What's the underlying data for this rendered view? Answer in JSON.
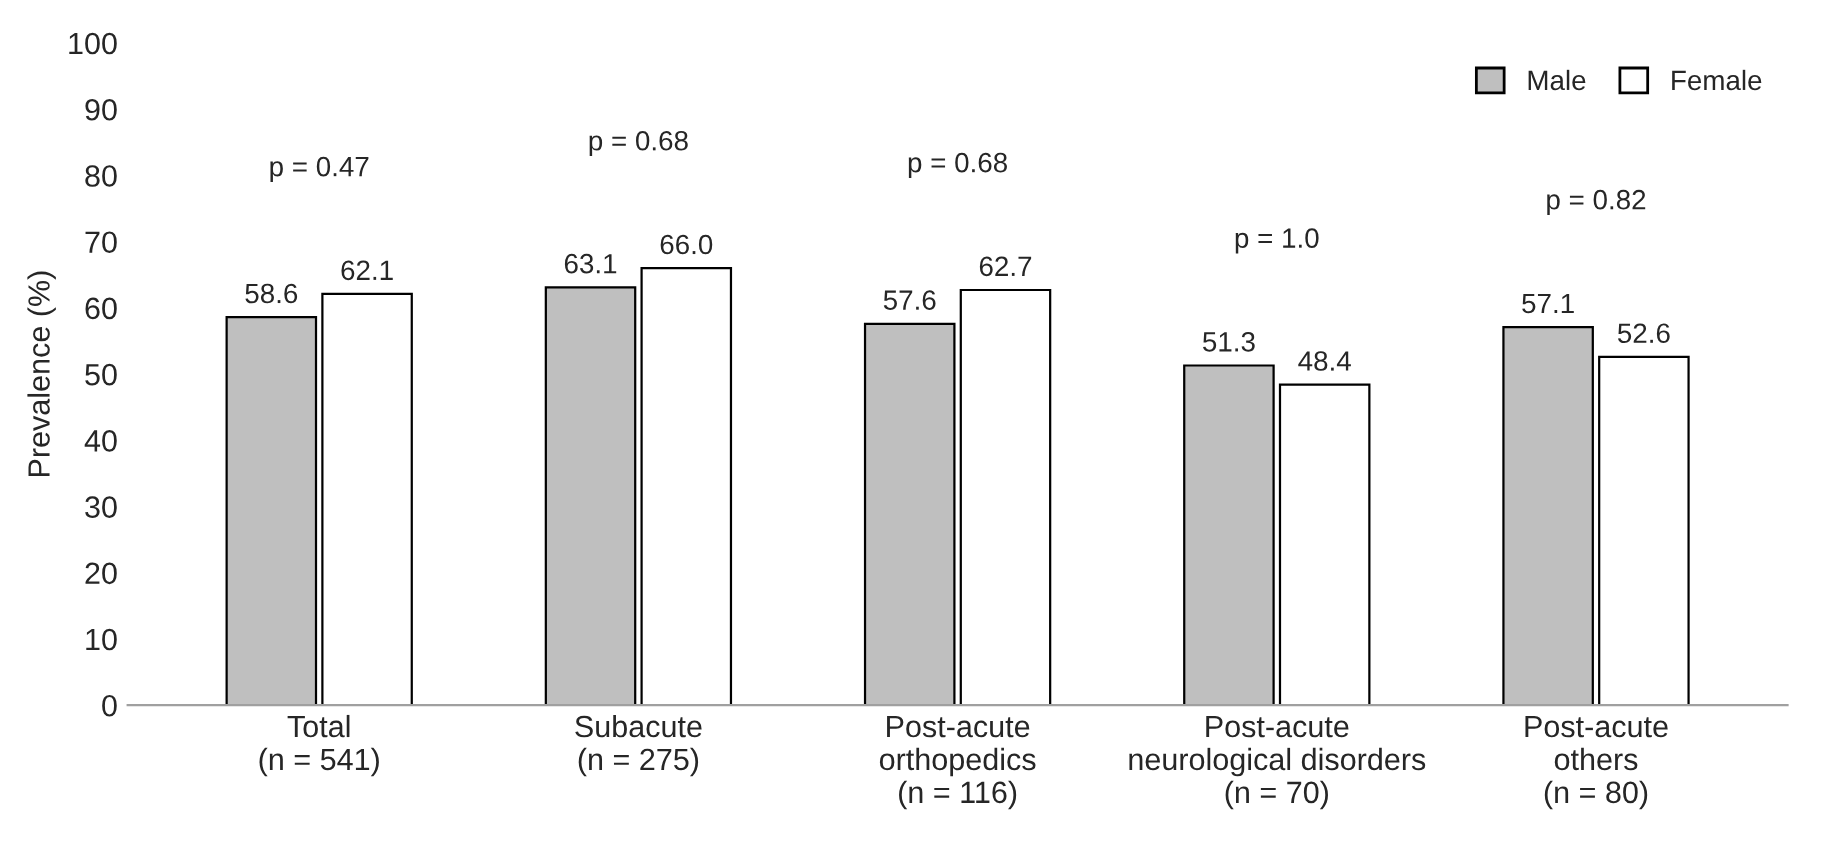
{
  "chart_data": {
    "type": "bar",
    "ylabel": "Prevalence (%)",
    "categories": [
      "Total\n(n = 541)",
      "Subacute\n(n = 275)",
      "Post-acute\northopedics\n(n = 116)",
      "Post-acute\nneurological disorders\n(n = 70)",
      "Post-acute\nothers\n(n = 80)"
    ],
    "series": [
      {
        "name": "Male",
        "color": "#bfbfbf",
        "values": [
          58.6,
          63.1,
          57.6,
          51.3,
          57.1
        ],
        "value_labels": [
          "58.6",
          "63.1",
          "57.6",
          "51.3",
          "57.1"
        ]
      },
      {
        "name": "Female",
        "color": "#ffffff",
        "values": [
          62.1,
          66.0,
          62.7,
          48.4,
          52.6
        ],
        "value_labels": [
          "62.1",
          "66.0",
          "62.7",
          "48.4",
          "52.6"
        ]
      }
    ],
    "ylim": [
      0,
      100
    ],
    "yticks": [
      0,
      10,
      20,
      30,
      40,
      50,
      60,
      70,
      80,
      90,
      100
    ],
    "legend": "top right",
    "grid": false,
    "annotations": [
      "p = 0.47",
      "p = 0.68",
      "p = 0.68",
      "p = 1.0",
      "p = 0.82"
    ]
  }
}
